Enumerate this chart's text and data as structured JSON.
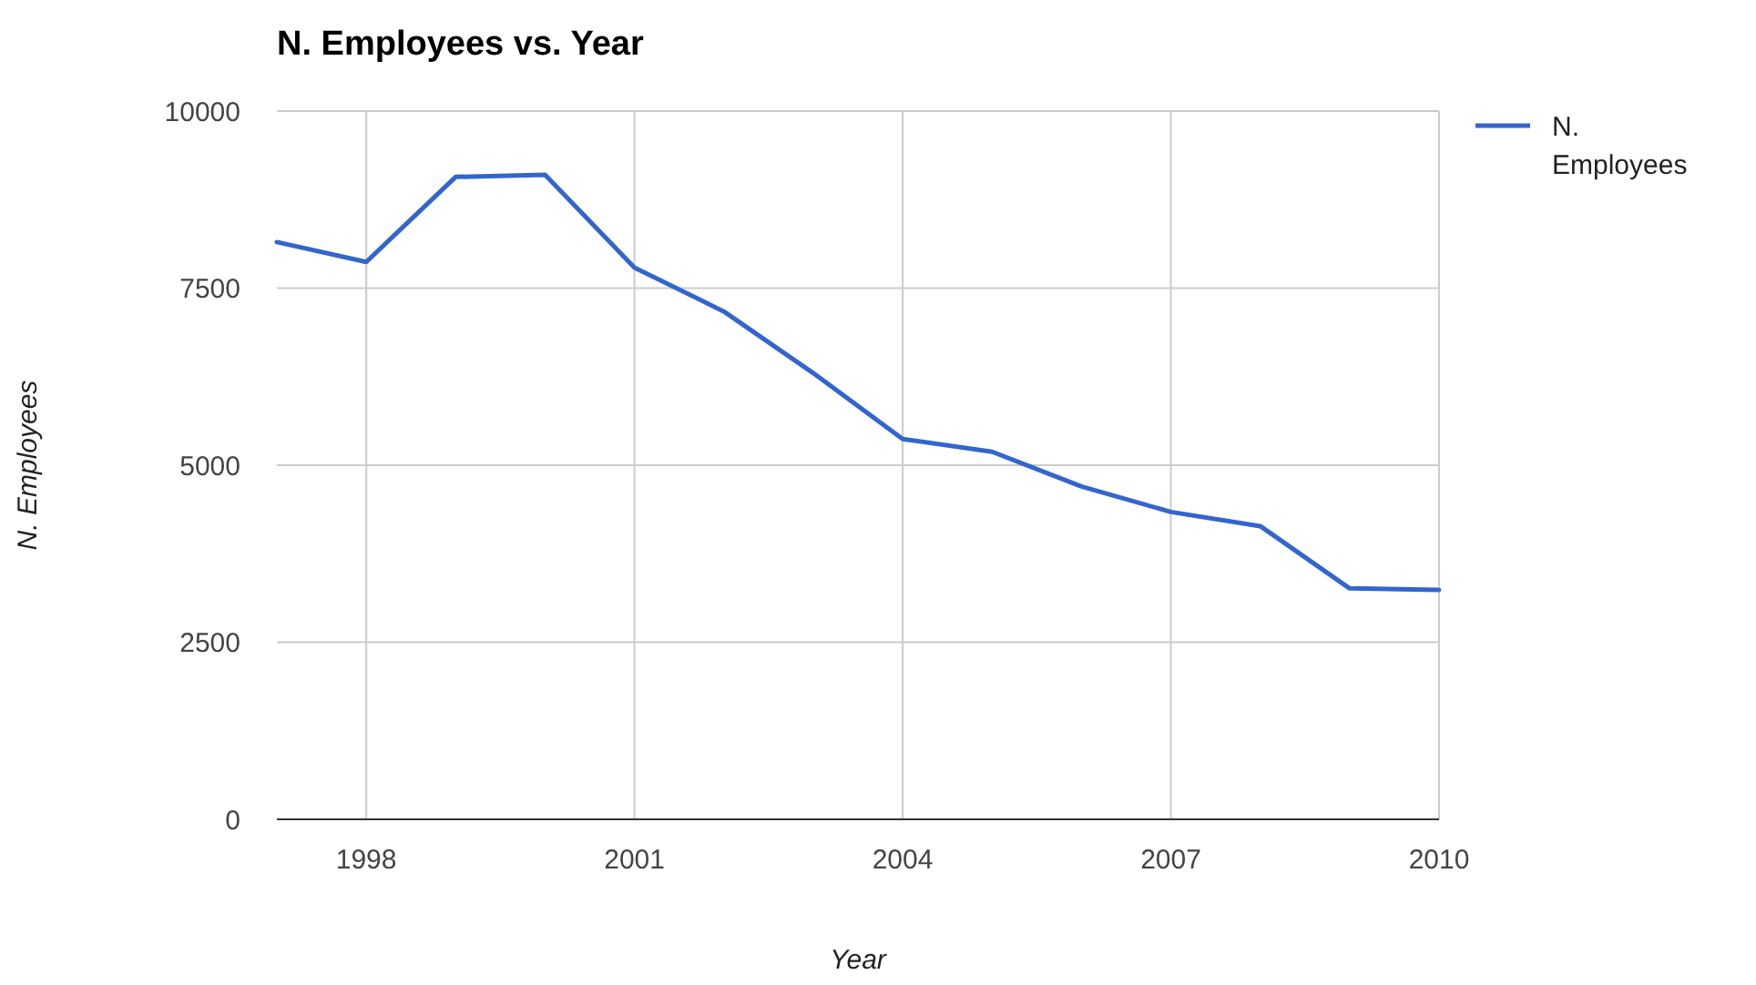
{
  "chart_data": {
    "type": "line",
    "title": "N. Employees vs. Year",
    "xlabel": "Year",
    "ylabel": "N. Employees",
    "x": [
      1997,
      1998,
      1999,
      2000,
      2001,
      2002,
      2003,
      2004,
      2005,
      2006,
      2007,
      2008,
      2009,
      2010
    ],
    "series": [
      {
        "name": "N. Employees",
        "color": "#3366cc",
        "values": [
          8150,
          7870,
          9070,
          9100,
          7790,
          7170,
          6300,
          5370,
          5190,
          4700,
          4340,
          4140,
          3260,
          3240
        ]
      }
    ],
    "xlim": [
      1997,
      2010
    ],
    "xticks": [
      1998,
      2001,
      2004,
      2007,
      2010
    ],
    "ylim": [
      0,
      10000
    ],
    "yticks": [
      0,
      2500,
      5000,
      7500,
      10000
    ],
    "grid": true,
    "legend": "top right",
    "marker": "none",
    "line_style": "solid"
  }
}
